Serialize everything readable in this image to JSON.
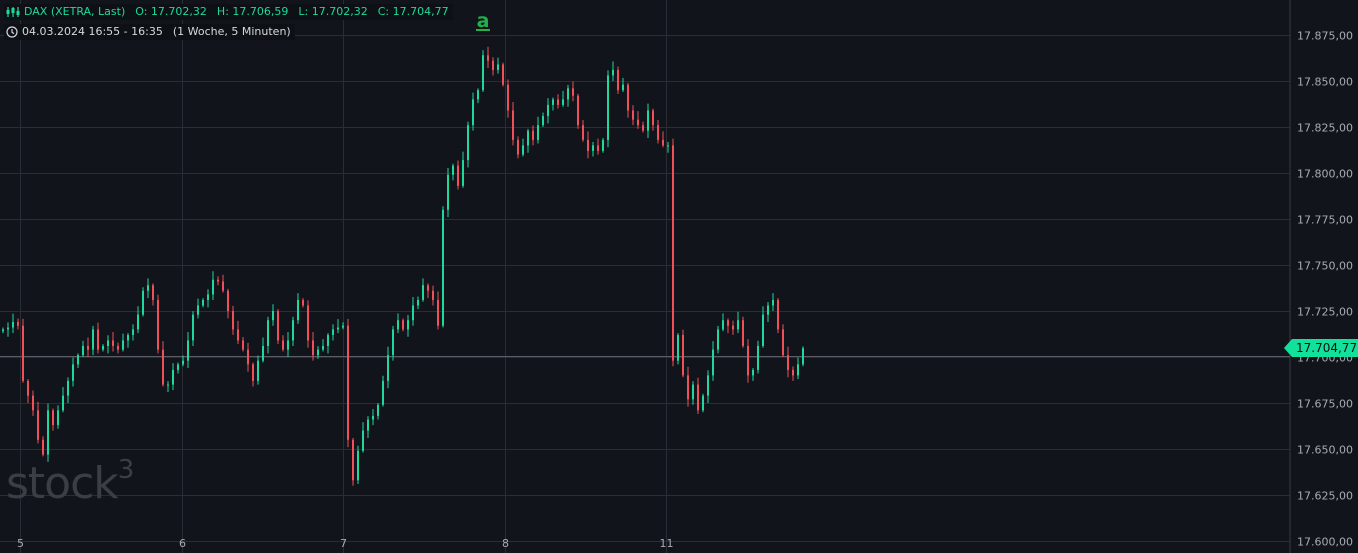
{
  "legend": {
    "symbol": "DAX (XETRA, Last)",
    "open": "O: 17.702,32",
    "high": "H: 17.706,59",
    "low": "L: 17.702,32",
    "close": "C: 17.704,77",
    "range": "04.03.2024 16:55 - 16:35",
    "period": "(1 Woche, 5 Minuten)"
  },
  "last_price_label": "17.704,77",
  "watermark": "stock³",
  "marker_label": "a",
  "colors": {
    "background": "#11141b",
    "grid": "#2a2d35",
    "up": "#1ed99b",
    "down": "#f0505a",
    "last_price": "#12e19c",
    "marker": "#22b04a"
  },
  "chart_data": {
    "type": "candlestick",
    "interval": "5 Minuten",
    "ylim": [
      17600,
      17885
    ],
    "y_ticks": [
      17600,
      17625,
      17650,
      17675,
      17700,
      17725,
      17750,
      17775,
      17800,
      17825,
      17850,
      17875
    ],
    "y_tick_labels": [
      "17.600,00",
      "17.625,00",
      "17.650,00",
      "17.675,00",
      "17.700,00",
      "17.725,00",
      "17.750,00",
      "17.775,00",
      "17.800,00",
      "17.825,00",
      "17.850,00",
      "17.875,00"
    ],
    "x_ticks": [
      {
        "label": "5",
        "bar": 4
      },
      {
        "label": "6",
        "bar": 36.4
      },
      {
        "label": "7",
        "bar": 68.6
      },
      {
        "label": "8",
        "bar": 101
      },
      {
        "label": "11",
        "bar": 133.2
      }
    ],
    "grid": true,
    "last_price": 17704.77,
    "marker": {
      "label": "a",
      "bar": 96
    },
    "closes": [
      17715,
      17716,
      17719,
      17717,
      17687,
      17679,
      17671,
      17655,
      17647,
      17671,
      17663,
      17671,
      17679,
      17687,
      17696,
      17701,
      17706,
      17704,
      17715,
      17704,
      17706,
      17709,
      17706,
      17704,
      17709,
      17712,
      17715,
      17723,
      17736,
      17739,
      17731,
      17704,
      17685,
      17685,
      17693,
      17696,
      17698,
      17709,
      17723,
      17728,
      17731,
      17734,
      17742,
      17741,
      17736,
      17725,
      17715,
      17709,
      17704,
      17696,
      17687,
      17698,
      17706,
      17720,
      17725,
      17709,
      17704,
      17709,
      17720,
      17731,
      17728,
      17709,
      17701,
      17704,
      17706,
      17712,
      17715,
      17716,
      17717,
      17655,
      17633,
      17649,
      17660,
      17666,
      17668,
      17674,
      17687,
      17701,
      17715,
      17720,
      17715,
      17720,
      17728,
      17731,
      17739,
      17736,
      17731,
      17717,
      17780,
      17799,
      17804,
      17793,
      17807,
      17826,
      17840,
      17845,
      17864,
      17861,
      17856,
      17859,
      17848,
      17834,
      17818,
      17810,
      17815,
      17823,
      17818,
      17826,
      17831,
      17837,
      17840,
      17837,
      17840,
      17846,
      17842,
      17826,
      17818,
      17812,
      17815,
      17812,
      17818,
      17853,
      17856,
      17845,
      17848,
      17834,
      17829,
      17826,
      17823,
      17834,
      17826,
      17818,
      17815,
      17815,
      17698,
      17712,
      17690,
      17677,
      17685,
      17671,
      17679,
      17690,
      17704,
      17715,
      17720,
      17717,
      17715,
      17720,
      17706,
      17690,
      17693,
      17706,
      17723,
      17728,
      17731,
      17715,
      17701,
      17693,
      17690,
      17696,
      17704.77
    ]
  }
}
